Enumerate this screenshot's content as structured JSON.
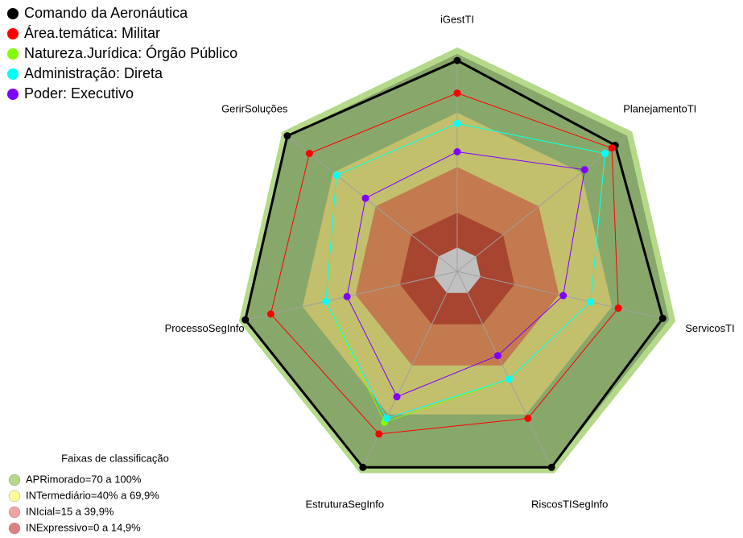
{
  "chart_data": {
    "type": "radar",
    "categories": [
      "iGestTI",
      "PlanejamentoTI",
      "ServicosTI",
      "RiscosTISegInfo",
      "EstruturaSegInfo",
      "ProcessoSegInfo",
      "GerirSoluções"
    ],
    "rlim": [
      0,
      100
    ],
    "series": [
      {
        "name": "Comando da Aeronáutica",
        "color": "#000000",
        "values": [
          97,
          93,
          97,
          100,
          100,
          100,
          100
        ]
      },
      {
        "name": "Área.temática: Militar",
        "color": "#ff0000",
        "values": [
          82,
          91,
          76,
          75,
          83,
          88,
          87
        ]
      },
      {
        "name": "Natureza.Jurídica: Órgão Público",
        "color": "#7fff00",
        "values": [
          68,
          87,
          63,
          55,
          77,
          62,
          71
        ]
      },
      {
        "name": "Administração: Direta",
        "color": "#00ffff",
        "values": [
          68,
          87,
          63,
          55,
          75,
          62,
          71
        ]
      },
      {
        "name": "Poder: Executivo",
        "color": "#8000ff",
        "values": [
          55,
          75,
          50,
          43,
          64,
          52,
          54
        ]
      }
    ],
    "band_legend": {
      "title": "Faixas de classificação",
      "items": [
        {
          "label": "APRimorado=70 a 100%",
          "color": "#b5d98a"
        },
        {
          "label": "INTermediário=40% a 69,9%",
          "color": "#ffff99"
        },
        {
          "label": "INIcial=15 a 39,9%",
          "color": "#f4a3a3"
        },
        {
          "label": "INExpressivo=0 a 14,9%",
          "color": "#e07f7f"
        }
      ]
    }
  }
}
